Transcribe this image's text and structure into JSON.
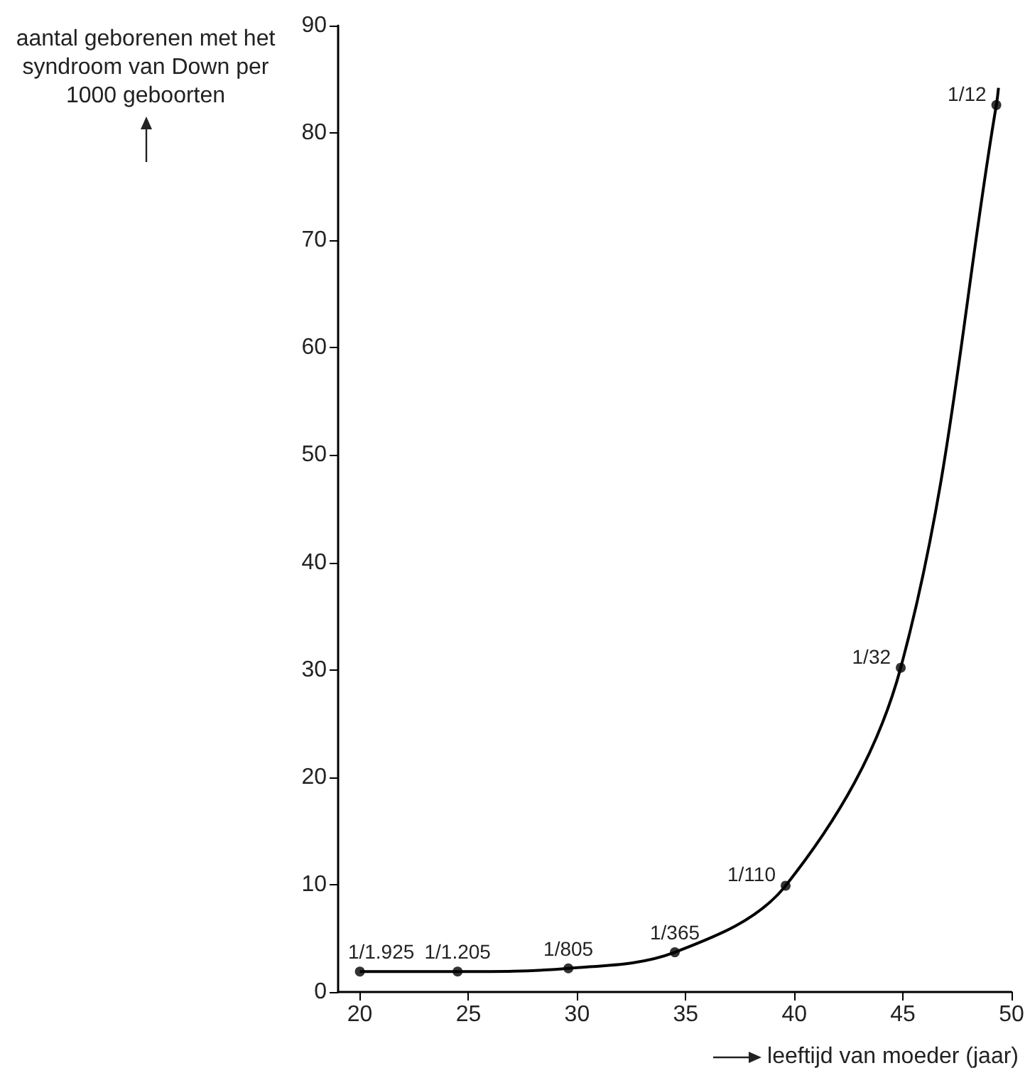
{
  "chart_data": {
    "type": "line",
    "xlabel": "leeftijd van moeder (jaar)",
    "ylabel": "aantal geborenen met het syndroom van Down per 1000 geboorten",
    "xlim": [
      19,
      50
    ],
    "xticks": [
      20,
      25,
      30,
      35,
      40,
      45,
      50
    ],
    "ylim": [
      0,
      90
    ],
    "yticks": [
      0,
      10,
      20,
      30,
      40,
      50,
      60,
      70,
      80,
      90
    ],
    "grid": false,
    "series": [
      {
        "color": "#000000",
        "marker": "none",
        "x": [
          20,
          24.5,
          29.6,
          34.5,
          39.6,
          44.9,
          49.3,
          49.4
        ],
        "values": [
          1.9,
          1.9,
          2.2,
          3.7,
          9.9,
          30.2,
          82.6,
          84.2
        ]
      },
      {
        "type": "scatter",
        "color": "#000000",
        "marker": "circle",
        "x": [
          20,
          24.5,
          29.6,
          34.5,
          39.6,
          44.9,
          49.3
        ],
        "values": [
          1.9,
          1.9,
          2.2,
          3.7,
          9.9,
          30.2,
          82.6
        ]
      }
    ],
    "annotations": [
      {
        "text": "1/1.925",
        "x": 20,
        "y": 1.9
      },
      {
        "text": "1/1.205",
        "x": 24.5,
        "y": 1.9
      },
      {
        "text": "1/805",
        "x": 29.6,
        "y": 2.2
      },
      {
        "text": "1/365",
        "x": 34.5,
        "y": 3.7
      },
      {
        "text": "1/110",
        "x": 39.6,
        "y": 9.9
      },
      {
        "text": "1/32",
        "x": 44.9,
        "y": 30.2
      },
      {
        "text": "1/12",
        "x": 49.3,
        "y": 82.6
      }
    ]
  }
}
